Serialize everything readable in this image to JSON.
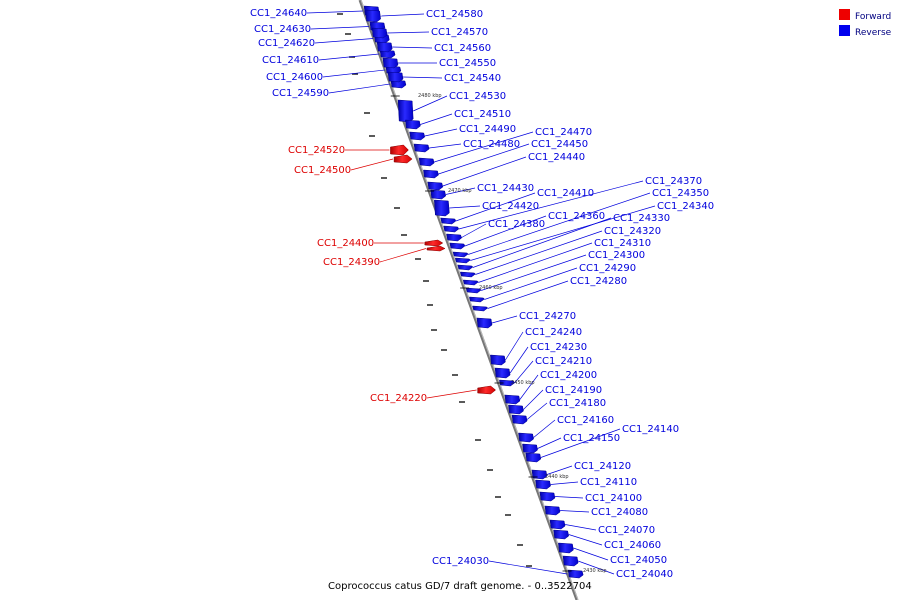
{
  "caption": "Coprococcus catus GD/7 draft genome. - 0..3522704",
  "legend": [
    {
      "label": "Forward",
      "color": "#ee0000"
    },
    {
      "label": "Reverse",
      "color": "#0000ee"
    }
  ],
  "ticks": [
    "2480 kbp",
    "2470 kbp",
    "2460 kbp",
    "2450 kbp",
    "2440 kbp",
    "2430 kbp"
  ],
  "genes": [
    {
      "name": "CC1_24640",
      "strand": "reverse"
    },
    {
      "name": "CC1_24630",
      "strand": "reverse"
    },
    {
      "name": "CC1_24620",
      "strand": "reverse"
    },
    {
      "name": "CC1_24610",
      "strand": "reverse"
    },
    {
      "name": "CC1_24600",
      "strand": "reverse"
    },
    {
      "name": "CC1_24590",
      "strand": "reverse"
    },
    {
      "name": "CC1_24580",
      "strand": "reverse"
    },
    {
      "name": "CC1_24570",
      "strand": "reverse"
    },
    {
      "name": "CC1_24560",
      "strand": "reverse"
    },
    {
      "name": "CC1_24550",
      "strand": "reverse"
    },
    {
      "name": "CC1_24540",
      "strand": "reverse"
    },
    {
      "name": "CC1_24530",
      "strand": "reverse"
    },
    {
      "name": "CC1_24520",
      "strand": "forward"
    },
    {
      "name": "CC1_24510",
      "strand": "reverse"
    },
    {
      "name": "CC1_24500",
      "strand": "forward"
    },
    {
      "name": "CC1_24490",
      "strand": "reverse"
    },
    {
      "name": "CC1_24480",
      "strand": "reverse"
    },
    {
      "name": "CC1_24470",
      "strand": "reverse"
    },
    {
      "name": "CC1_24450",
      "strand": "reverse"
    },
    {
      "name": "CC1_24440",
      "strand": "reverse"
    },
    {
      "name": "CC1_24430",
      "strand": "reverse"
    },
    {
      "name": "CC1_24420",
      "strand": "reverse"
    },
    {
      "name": "CC1_24410",
      "strand": "reverse"
    },
    {
      "name": "CC1_24400",
      "strand": "forward"
    },
    {
      "name": "CC1_24390",
      "strand": "forward"
    },
    {
      "name": "CC1_24380",
      "strand": "reverse"
    },
    {
      "name": "CC1_24370",
      "strand": "reverse"
    },
    {
      "name": "CC1_24360",
      "strand": "reverse"
    },
    {
      "name": "CC1_24350",
      "strand": "reverse"
    },
    {
      "name": "CC1_24340",
      "strand": "reverse"
    },
    {
      "name": "CC1_24330",
      "strand": "reverse"
    },
    {
      "name": "CC1_24320",
      "strand": "reverse"
    },
    {
      "name": "CC1_24310",
      "strand": "reverse"
    },
    {
      "name": "CC1_24300",
      "strand": "reverse"
    },
    {
      "name": "CC1_24290",
      "strand": "reverse"
    },
    {
      "name": "CC1_24280",
      "strand": "reverse"
    },
    {
      "name": "CC1_24270",
      "strand": "reverse"
    },
    {
      "name": "CC1_24240",
      "strand": "reverse"
    },
    {
      "name": "CC1_24230",
      "strand": "reverse"
    },
    {
      "name": "CC1_24220",
      "strand": "forward"
    },
    {
      "name": "CC1_24210",
      "strand": "reverse"
    },
    {
      "name": "CC1_24200",
      "strand": "reverse"
    },
    {
      "name": "CC1_24190",
      "strand": "reverse"
    },
    {
      "name": "CC1_24180",
      "strand": "reverse"
    },
    {
      "name": "CC1_24160",
      "strand": "reverse"
    },
    {
      "name": "CC1_24150",
      "strand": "reverse"
    },
    {
      "name": "CC1_24140",
      "strand": "reverse"
    },
    {
      "name": "CC1_24120",
      "strand": "reverse"
    },
    {
      "name": "CC1_24110",
      "strand": "reverse"
    },
    {
      "name": "CC1_24100",
      "strand": "reverse"
    },
    {
      "name": "CC1_24080",
      "strand": "reverse"
    },
    {
      "name": "CC1_24070",
      "strand": "reverse"
    },
    {
      "name": "CC1_24060",
      "strand": "reverse"
    },
    {
      "name": "CC1_24050",
      "strand": "reverse"
    },
    {
      "name": "CC1_24040",
      "strand": "reverse"
    },
    {
      "name": "CC1_24030",
      "strand": "reverse"
    }
  ]
}
